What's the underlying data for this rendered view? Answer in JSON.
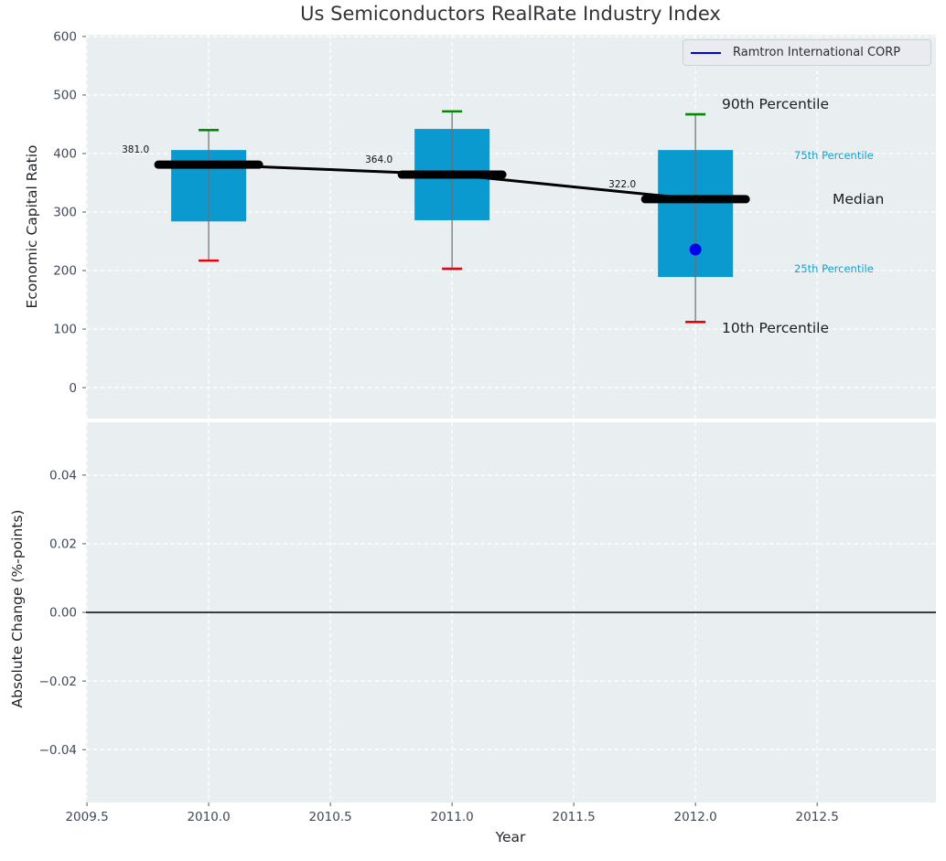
{
  "title": "Us Semiconductors RealRate Industry Index",
  "legend": {
    "label": "Ramtron International CORP"
  },
  "colors": {
    "plot_bg": "#e9eef0",
    "grid": "#ffffff",
    "box_fill": "#0a9acf",
    "whisker": "#6b6f73",
    "cap_90th": "#008a00",
    "cap_10th": "#e8000b",
    "median_line": "#000000",
    "trend_line": "#000000",
    "series_blue": "#0000ee",
    "tick_text": "#3e4a5c",
    "percentile_text": "#17a0cb",
    "dark_text": "#1c1e21",
    "zero_line": "#000000"
  },
  "chart_data": [
    {
      "type": "boxplot",
      "ylabel": "Economic Capital Ratio",
      "xlim": [
        2009.496,
        2012.988
      ],
      "ylim": [
        -53,
        603
      ],
      "yticks": [
        0,
        100,
        200,
        300,
        400,
        500,
        600
      ],
      "ytick_labels": [
        "0",
        "100",
        "200",
        "300",
        "400",
        "500",
        "600"
      ],
      "grid": true,
      "legend_position": "upper right",
      "boxes": [
        {
          "x": 2010,
          "p10": 217,
          "p25": 284,
          "median": 381,
          "p75": 406,
          "p90": 440,
          "median_label": "381.0"
        },
        {
          "x": 2011,
          "p10": 203,
          "p25": 286,
          "median": 364,
          "p75": 442,
          "p90": 472,
          "median_label": "364.0"
        },
        {
          "x": 2012,
          "p10": 112,
          "p25": 189,
          "median": 322,
          "p75": 406,
          "p90": 467,
          "median_label": "322.0"
        }
      ],
      "median_trend": [
        [
          2010,
          381
        ],
        [
          2011,
          364
        ],
        [
          2012,
          322
        ]
      ],
      "series_point": {
        "name": "Ramtron International CORP",
        "x": 2012,
        "y": 236
      },
      "annotations": [
        {
          "text": "90th Percentile"
        },
        {
          "text": "75th Percentile"
        },
        {
          "text": "Median"
        },
        {
          "text": "25th Percentile"
        },
        {
          "text": "10th Percentile"
        }
      ]
    },
    {
      "type": "line",
      "ylabel": "Absolute Change (%-points)",
      "xlabel": "Year",
      "xlim": [
        2009.496,
        2012.988
      ],
      "ylim": [
        -0.0554,
        0.0554
      ],
      "yticks": [
        -0.04,
        -0.02,
        0.0,
        0.02,
        0.04
      ],
      "ytick_labels": [
        "−0.04",
        "−0.02",
        "0.00",
        "0.02",
        "0.04"
      ],
      "xticks": [
        2009.5,
        2010.0,
        2010.5,
        2011.0,
        2011.5,
        2012.0,
        2012.5
      ],
      "xtick_labels": [
        "2009.5",
        "2010.0",
        "2010.5",
        "2011.0",
        "2011.5",
        "2012.0",
        "2012.5"
      ],
      "zero_line": 0.0,
      "grid": true,
      "series": []
    }
  ]
}
